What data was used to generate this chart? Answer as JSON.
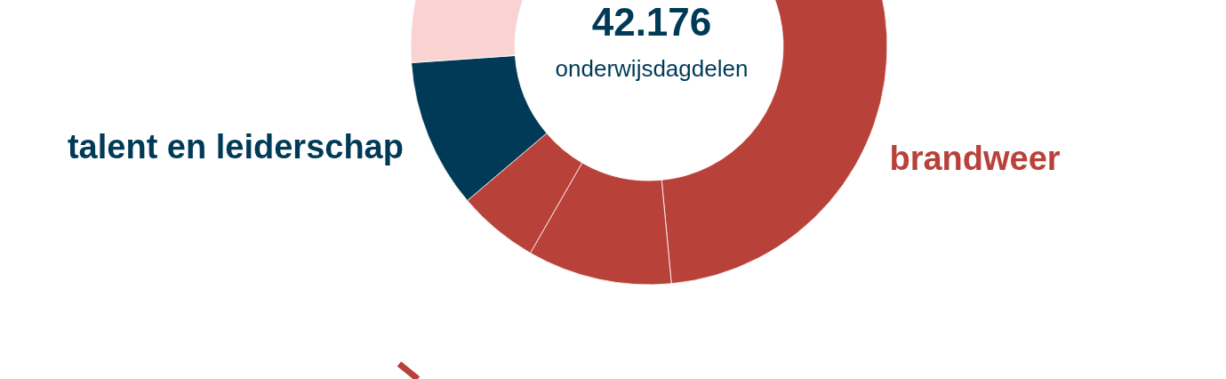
{
  "chart_data": {
    "type": "donut",
    "title": "42.176",
    "subtitle": "onderwijsdagdelen",
    "categories": [
      "brandweer",
      null,
      null,
      "talent en leiderschap",
      null
    ],
    "values": [
      48.5,
      9.8,
      5.5,
      10.1,
      26.1
    ],
    "colors": [
      "#b8423a",
      "#b8423a",
      "#b8423a",
      "#003a57",
      "#f9d3d2"
    ]
  }
}
